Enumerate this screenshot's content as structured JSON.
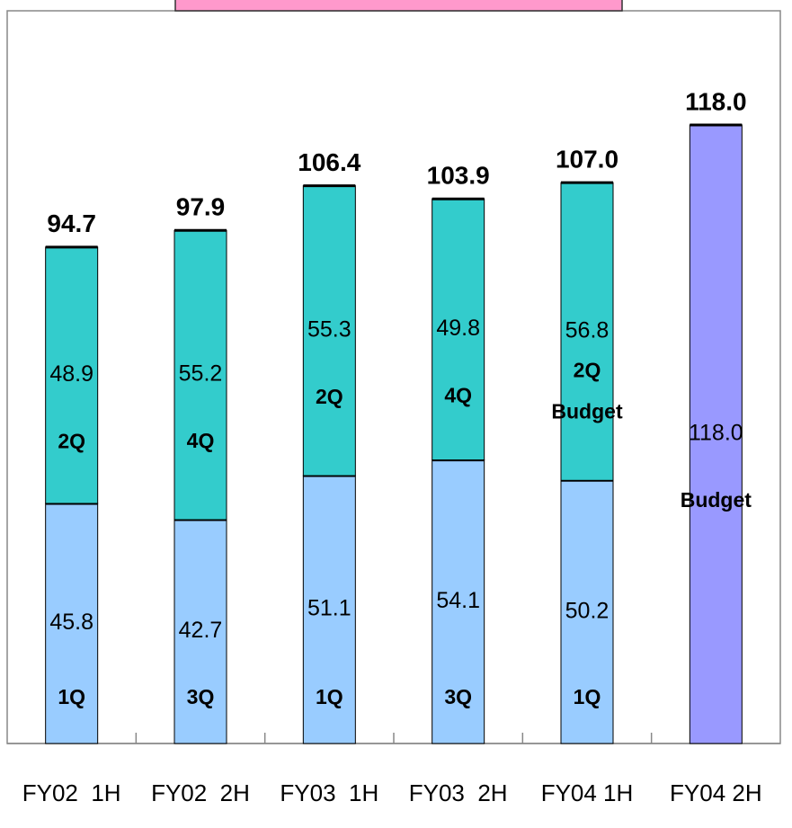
{
  "chart_data": {
    "type": "stacked-bar",
    "categories": [
      "FY02  1H",
      "FY02  2H",
      "FY03  1H",
      "FY03  2H",
      "FY04 1H",
      "FY04 2H"
    ],
    "series": [
      {
        "color": "#99ccff",
        "values": [
          45.8,
          42.7,
          51.1,
          54.1,
          50.2,
          null
        ],
        "segment_labels": [
          "1Q",
          "3Q",
          "1Q",
          "3Q",
          "1Q",
          null
        ]
      },
      {
        "color": "#33cccc",
        "values": [
          48.9,
          55.2,
          55.3,
          49.8,
          56.8,
          null
        ],
        "segment_labels": [
          "2Q",
          "4Q",
          "2Q",
          "4Q",
          "2Q\nBudget",
          null
        ]
      },
      {
        "color": "#9999ff",
        "values": [
          null,
          null,
          null,
          null,
          null,
          118.0
        ],
        "value_labels": [
          null,
          null,
          null,
          null,
          null,
          "118.0"
        ],
        "segment_labels": [
          null,
          null,
          null,
          null,
          null,
          "Budget"
        ]
      }
    ],
    "totals": [
      94.7,
      97.9,
      106.4,
      103.9,
      107.0,
      118.0
    ],
    "total_labels": [
      "94.7",
      "97.9",
      "106.4",
      "103.9",
      "107.0",
      "118.0"
    ]
  }
}
